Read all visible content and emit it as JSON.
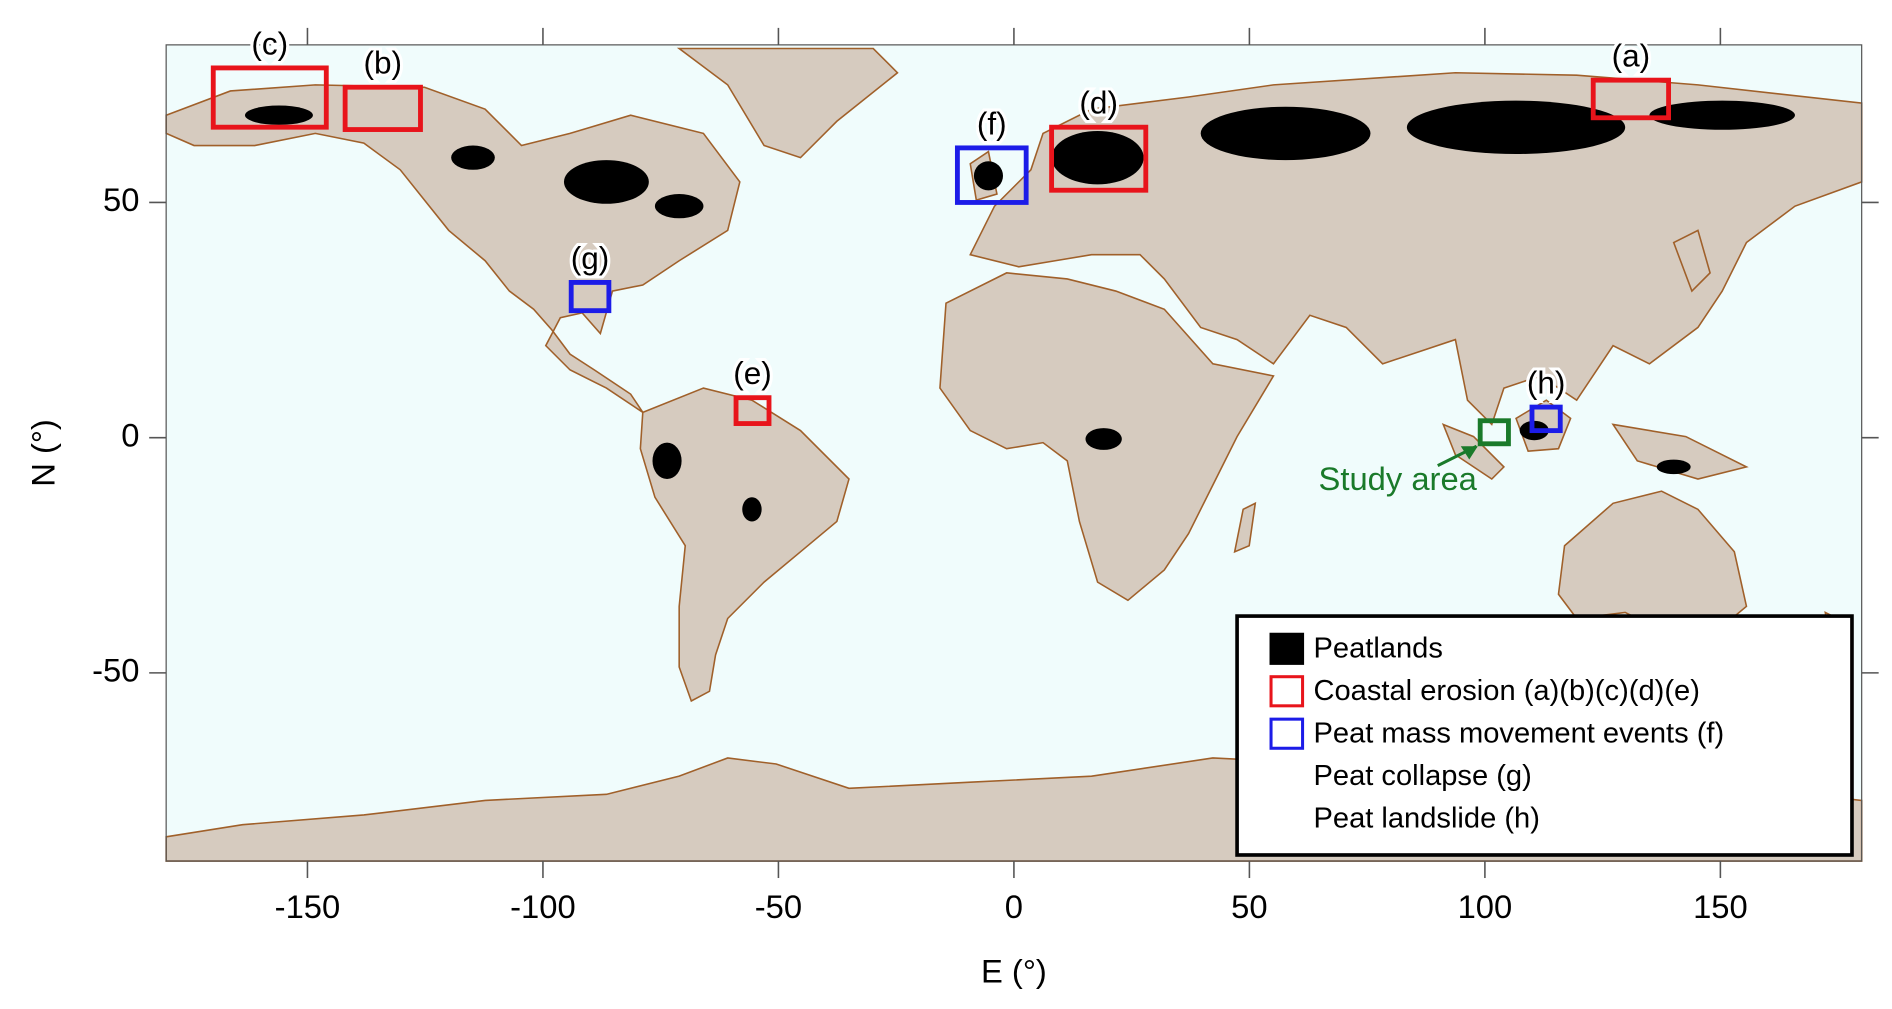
{
  "chart_data": {
    "type": "map",
    "xlabel": "E (°)",
    "ylabel": "N (°)",
    "xlim": [
      -180,
      180
    ],
    "ylim": [
      -90,
      83.5
    ],
    "xticks": [
      -150,
      -100,
      -50,
      0,
      50,
      100,
      150
    ],
    "yticks": [
      -50,
      0,
      50
    ],
    "regions": [
      {
        "label": "(a)",
        "lon": [
          123,
          139
        ],
        "lat": [
          68,
          76
        ],
        "color": "#e8141b"
      },
      {
        "label": "(b)",
        "lon": [
          -142,
          -126
        ],
        "lat": [
          65.5,
          74.5
        ],
        "color": "#e8141b"
      },
      {
        "label": "(c)",
        "lon": [
          -170,
          -146
        ],
        "lat": [
          66,
          78.6
        ],
        "color": "#e8141b"
      },
      {
        "label": "(d)",
        "lon": [
          8,
          28
        ],
        "lat": [
          52.6,
          66
        ],
        "color": "#e8141b"
      },
      {
        "label": "(e)",
        "lon": [
          -59,
          -52
        ],
        "lat": [
          3,
          8.5
        ],
        "color": "#e8141b"
      },
      {
        "label": "(f)",
        "lon": [
          -12,
          2.6
        ],
        "lat": [
          50,
          61.6
        ],
        "color": "#1c1ce8"
      },
      {
        "label": "(g)",
        "lon": [
          -94,
          -86
        ],
        "lat": [
          27,
          33
        ],
        "color": "#1c1ce8"
      },
      {
        "label": "(h)",
        "lon": [
          110,
          116
        ],
        "lat": [
          1.5,
          6.5
        ],
        "color": "#1c1ce8"
      }
    ],
    "study_area": {
      "label": "Study area",
      "lon": [
        99,
        105
      ],
      "lat": [
        -1.3,
        3.6
      ],
      "color": "#1a7a2a"
    },
    "legend": [
      {
        "label": "Peatlands",
        "color": "#000000",
        "marker": "filled"
      },
      {
        "label": "Coastal erosion (a)(b)(c)(d)(e)",
        "color": "#e8141b",
        "marker": "outline"
      },
      {
        "label": "Peat mass movement events (f)",
        "color": "#1c1ce8",
        "marker": "outline"
      },
      {
        "label": "Peat collapse (g)"
      },
      {
        "label": "Peat landslide (h)"
      }
    ]
  }
}
